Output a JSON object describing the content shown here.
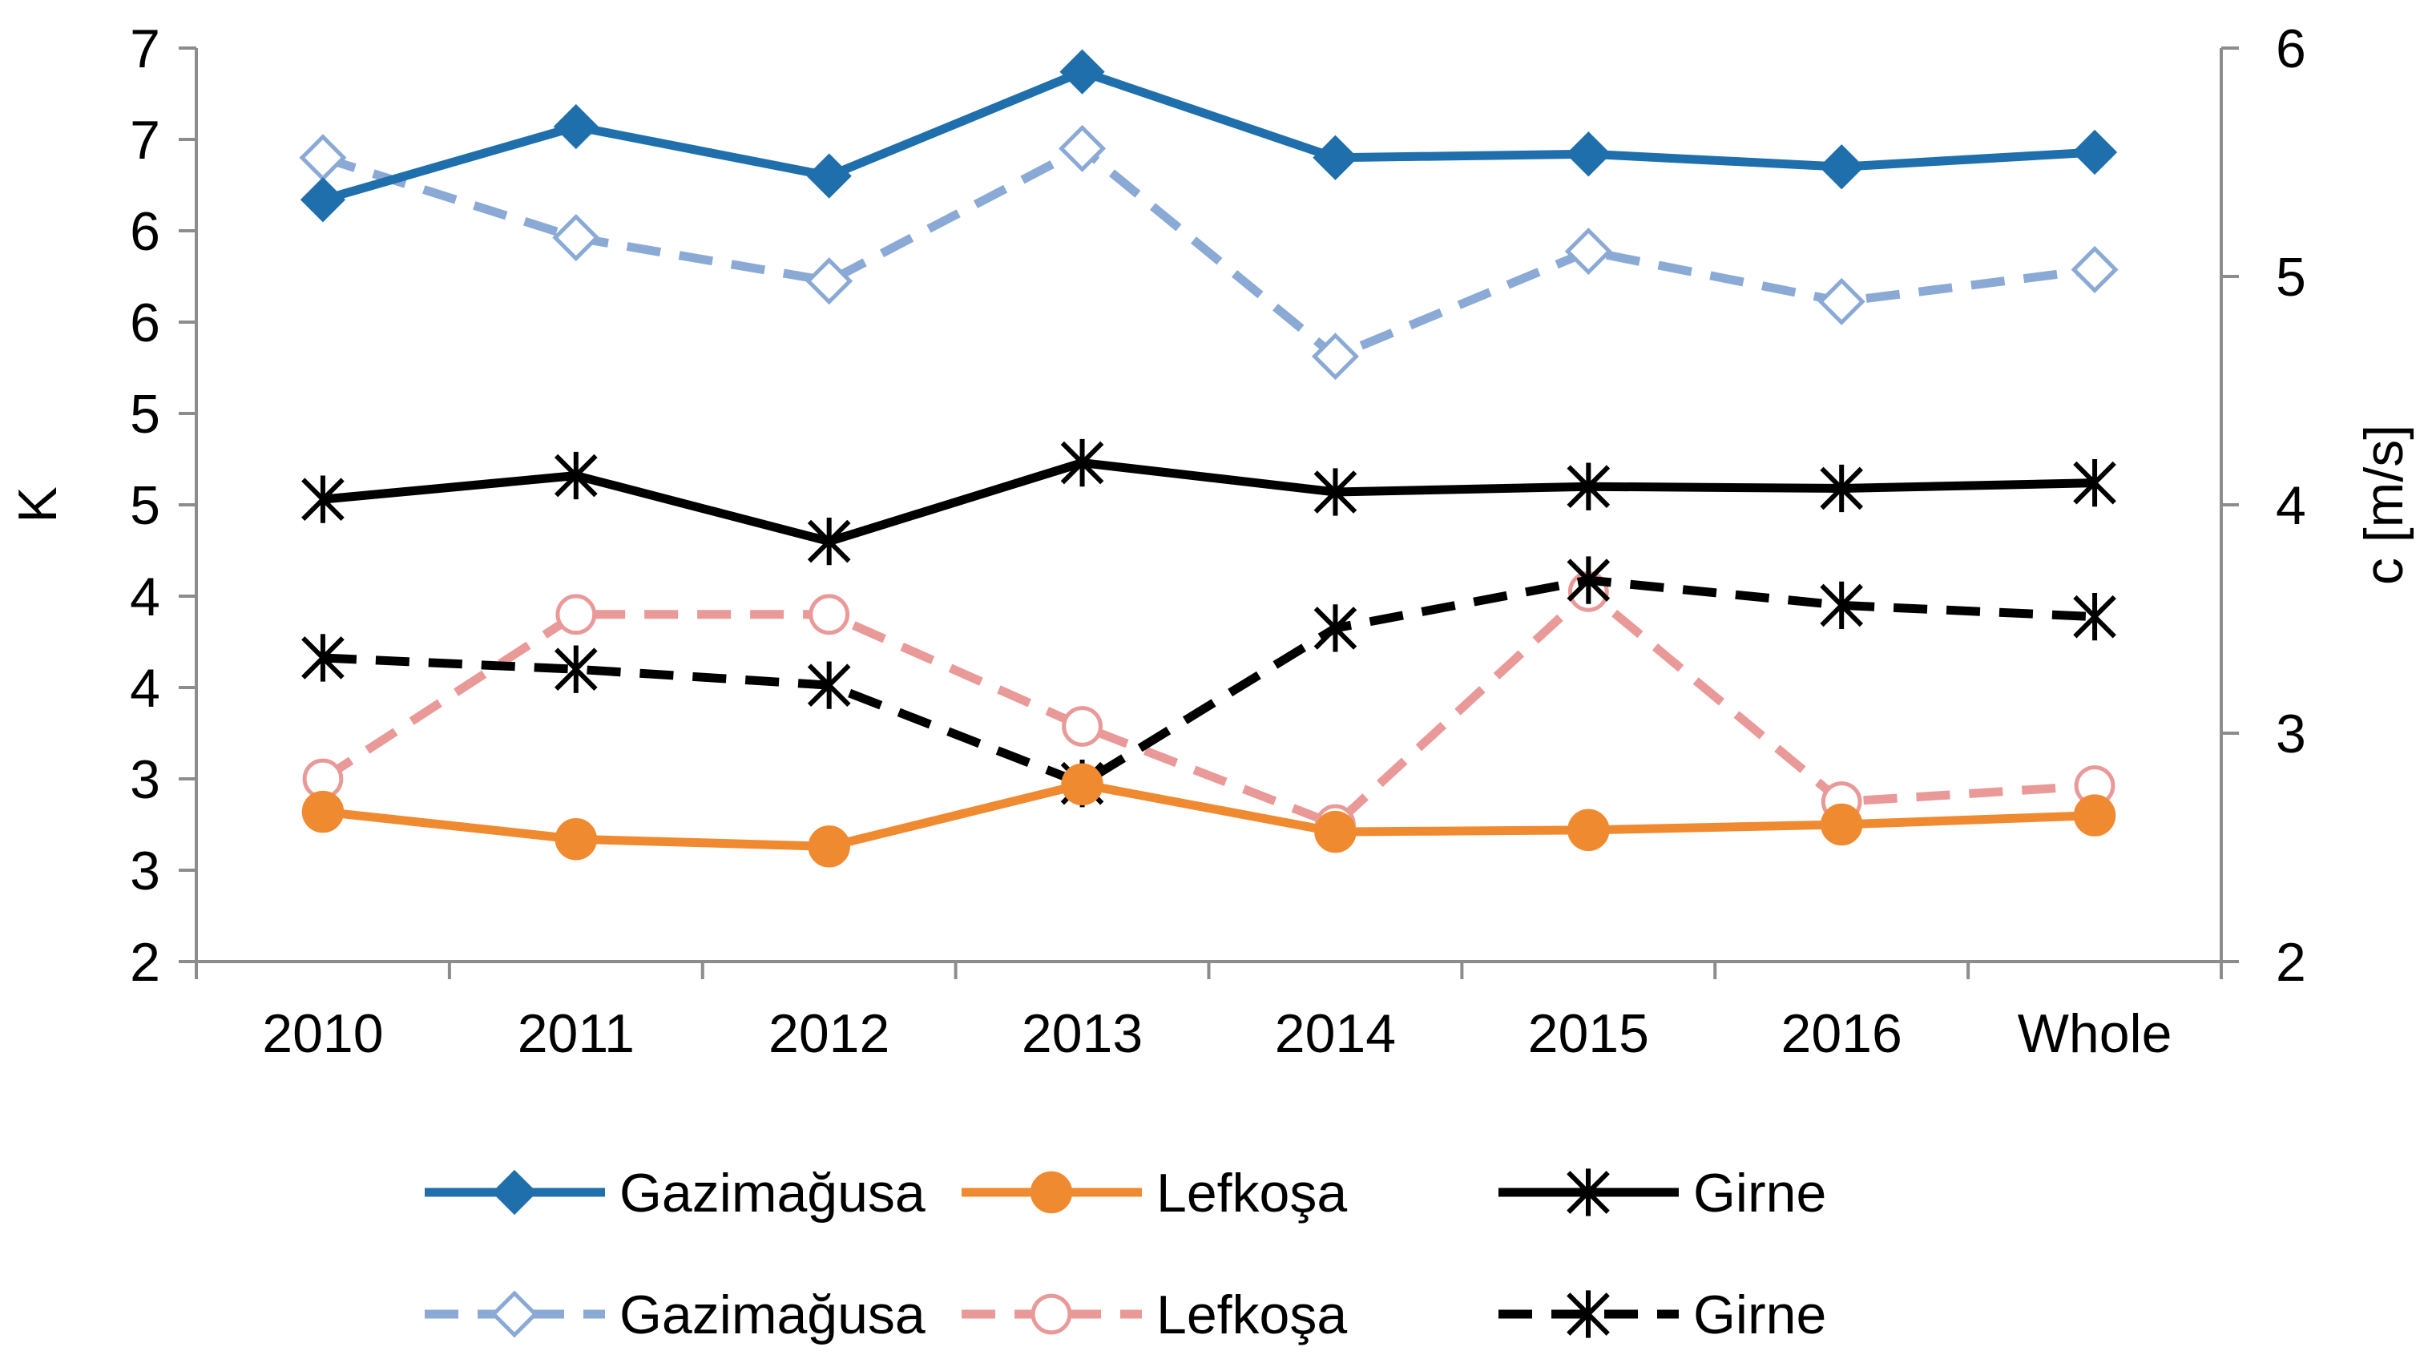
{
  "chart_data": {
    "type": "line",
    "title": "",
    "categories": [
      "2010",
      "2011",
      "2012",
      "2013",
      "2014",
      "2015",
      "2016",
      "Whole"
    ],
    "y_left": {
      "label": "K",
      "lim": [
        2,
        7
      ],
      "ticks": [
        2,
        2.5,
        3,
        3.5,
        4,
        4.5,
        5,
        5.5,
        6,
        6.5,
        7
      ],
      "tick_labels": [
        "2",
        "3",
        "3",
        "4",
        "4",
        "5",
        "5",
        "6",
        "6",
        "7",
        "7"
      ]
    },
    "y_right": {
      "label": "c [m/s]",
      "lim": [
        2,
        6
      ],
      "ticks": [
        2,
        3,
        4,
        5,
        6
      ],
      "tick_labels": [
        "2",
        "3",
        "4",
        "5",
        "6"
      ]
    },
    "series": [
      {
        "name": "Gazimağusa",
        "axis": "left",
        "color": "#1f6fad",
        "dash": false,
        "marker": "diamond-filled",
        "values": [
          6.17,
          6.57,
          6.3,
          6.87,
          6.4,
          6.42,
          6.35,
          6.43
        ]
      },
      {
        "name": "Lefkoşa",
        "axis": "left",
        "color": "#f08a30",
        "dash": false,
        "marker": "circle-filled",
        "values": [
          2.82,
          2.67,
          2.63,
          2.97,
          2.71,
          2.72,
          2.75,
          2.8
        ]
      },
      {
        "name": "Girne",
        "axis": "left",
        "color": "#000000",
        "dash": false,
        "marker": "star",
        "values": [
          4.53,
          4.66,
          4.3,
          4.73,
          4.57,
          4.6,
          4.59,
          4.62
        ]
      },
      {
        "name": "Gazimağusa",
        "axis": "right",
        "color": "#8aaad5",
        "dash": true,
        "marker": "diamond-open",
        "values": [
          5.52,
          5.17,
          4.98,
          5.56,
          4.65,
          5.11,
          4.89,
          5.03
        ]
      },
      {
        "name": "Lefkoşa",
        "axis": "right",
        "color": "#e99a98",
        "dash": true,
        "marker": "circle-open",
        "values": [
          2.8,
          3.52,
          3.52,
          3.03,
          2.6,
          3.62,
          2.7,
          2.77
        ]
      },
      {
        "name": "Girne",
        "axis": "right",
        "color": "#000000",
        "dash": true,
        "marker": "star",
        "values": [
          3.33,
          3.28,
          3.21,
          2.78,
          3.46,
          3.67,
          3.56,
          3.51
        ]
      }
    ],
    "legend": {
      "placement": "bottom",
      "columns": 3
    }
  }
}
